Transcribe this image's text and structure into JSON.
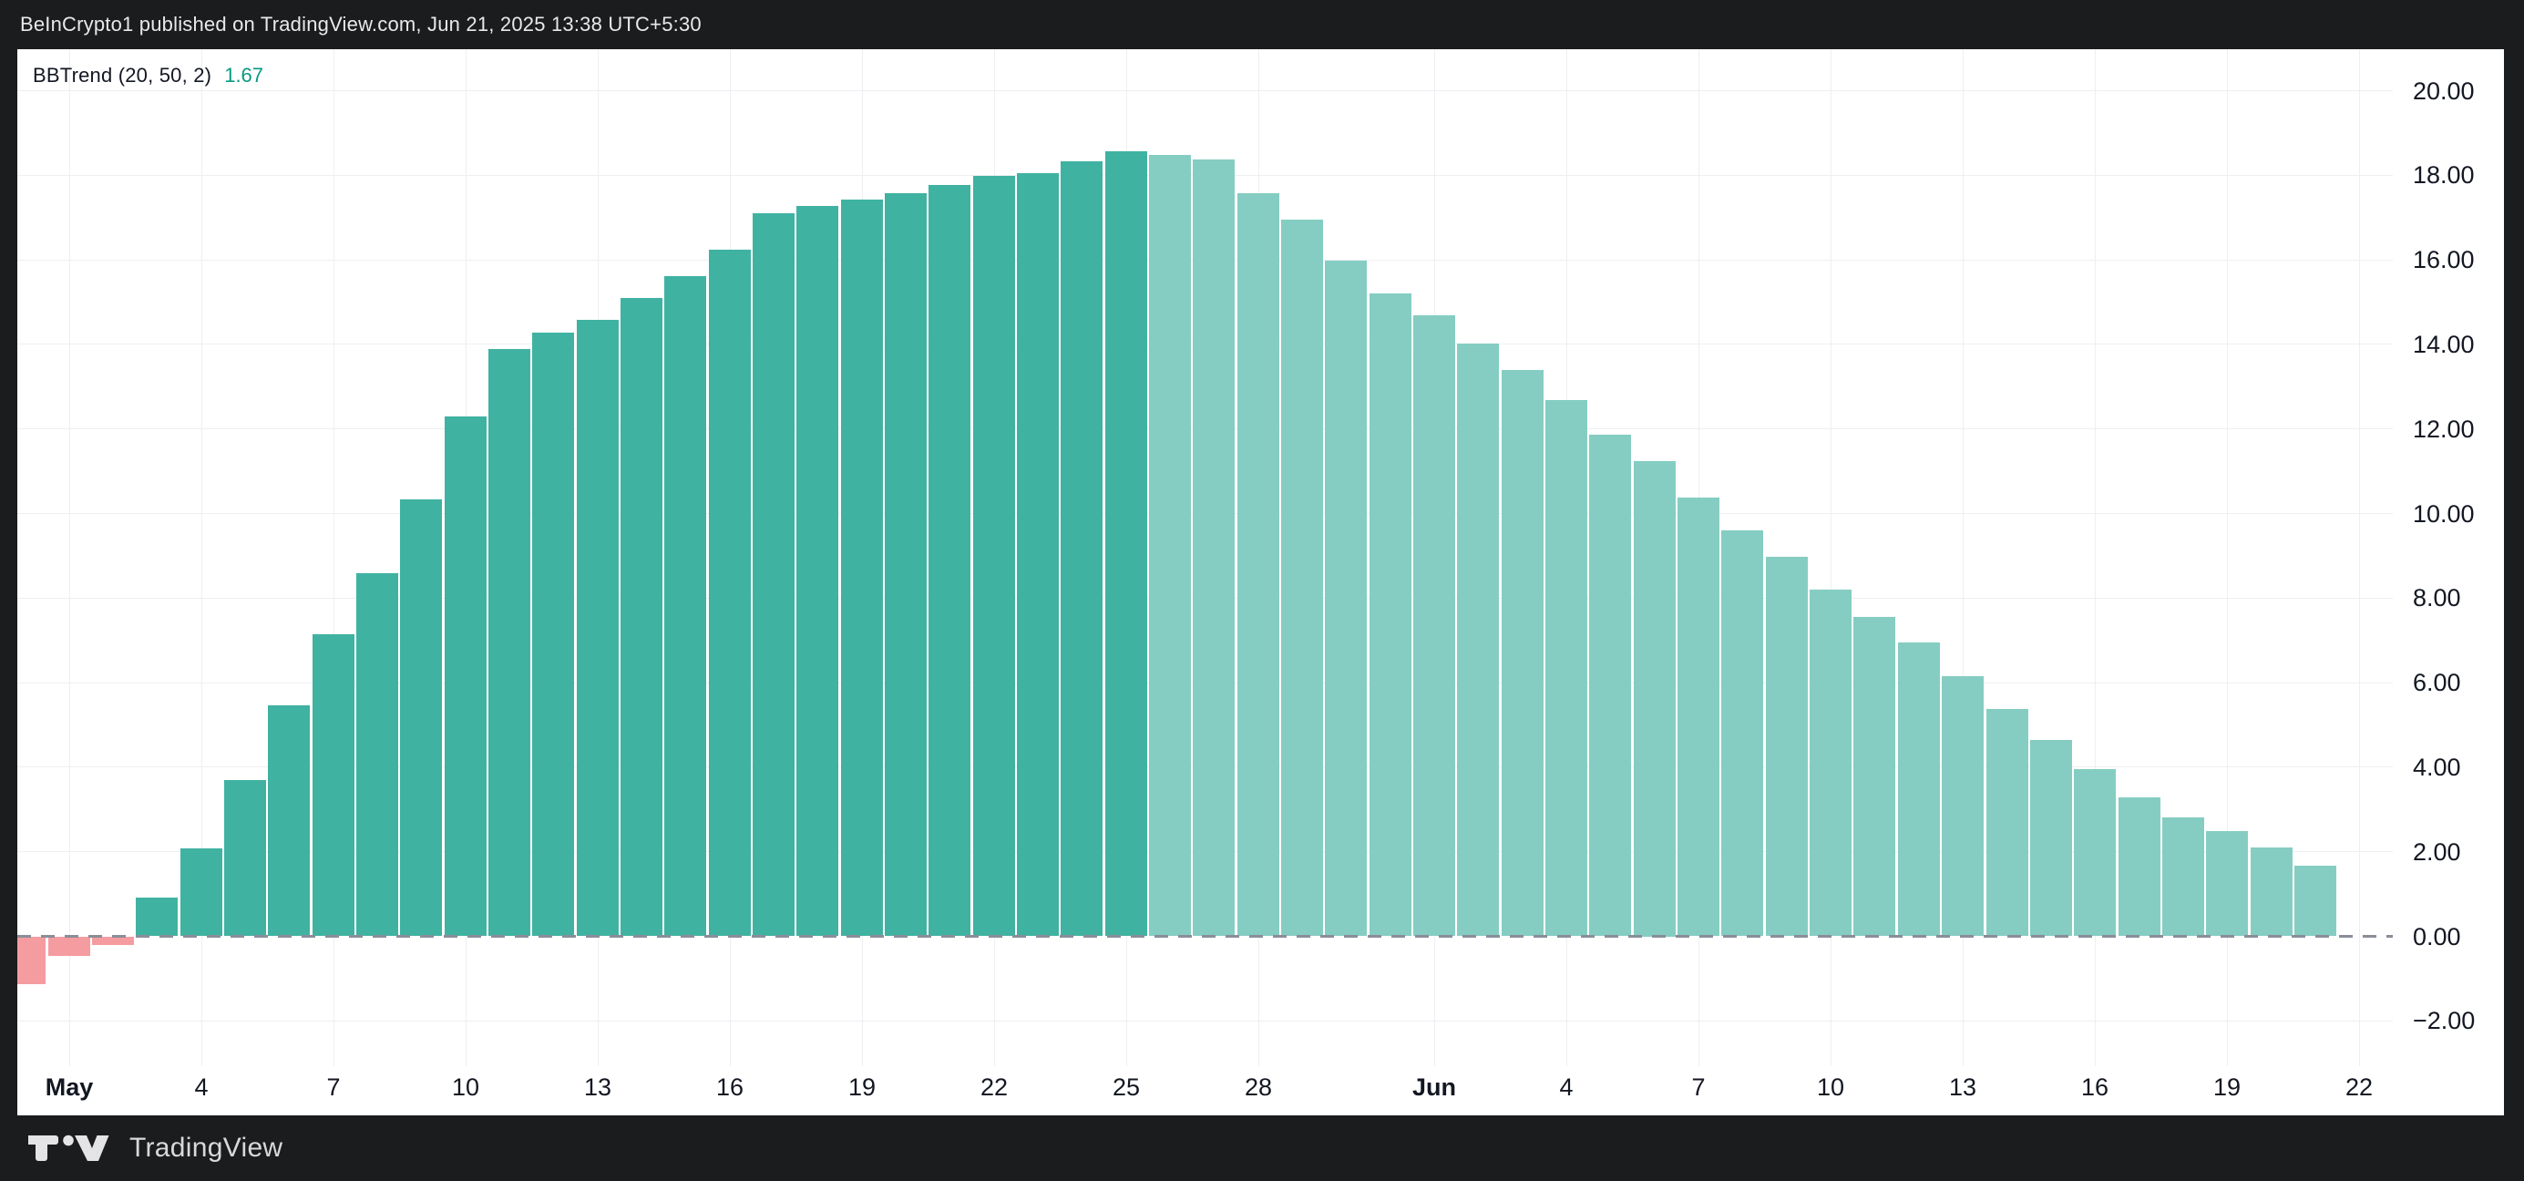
{
  "header": {
    "title": "BeInCrypto1 published on TradingView.com, Jun 21, 2025 13:38 UTC+5:30"
  },
  "indicator": {
    "name": "BBTrend (20, 50, 2)",
    "value": "1.67"
  },
  "footer": {
    "brand": "TradingView"
  },
  "colors": {
    "frame": "#1B1C1E",
    "plot_bg": "#FFFFFF",
    "header_text": "#E8E9EB",
    "footer_text": "#D8D9DB",
    "axis_text": "#131722",
    "value_text": "#089981",
    "grid": "#EDEFF2",
    "zero_line": "#8A8E98",
    "up_strong": "#40B2A2",
    "up_weak": "#85CDC2",
    "down": "#F59CA1",
    "logo": "#E4E4E6"
  },
  "chart_data": {
    "type": "bar",
    "title": "BBTrend (20, 50, 2)",
    "ylabel": "",
    "xlabel": "",
    "ylim": [
      -3.1,
      21.0
    ],
    "grid": true,
    "zero_line": "dashed",
    "legend_position": "top-left",
    "categories": [
      "Apr 30",
      "May 1",
      "May 2",
      "May 3",
      "May 4",
      "May 5",
      "May 6",
      "May 7",
      "May 8",
      "May 9",
      "May 10",
      "May 11",
      "May 12",
      "May 13",
      "May 14",
      "May 15",
      "May 16",
      "May 17",
      "May 18",
      "May 19",
      "May 20",
      "May 21",
      "May 22",
      "May 23",
      "May 24",
      "May 25",
      "May 26",
      "May 27",
      "May 28",
      "May 29",
      "May 30",
      "May 31",
      "Jun 1",
      "Jun 2",
      "Jun 3",
      "Jun 4",
      "Jun 5",
      "Jun 6",
      "Jun 7",
      "Jun 8",
      "Jun 9",
      "Jun 10",
      "Jun 11",
      "Jun 12",
      "Jun 13",
      "Jun 14",
      "Jun 15",
      "Jun 16",
      "Jun 17",
      "Jun 18",
      "Jun 19",
      "Jun 20",
      "Jun 21"
    ],
    "values": [
      -1.13,
      -0.46,
      -0.21,
      0.92,
      2.08,
      3.7,
      5.46,
      7.15,
      8.59,
      10.33,
      12.3,
      13.9,
      14.27,
      14.58,
      15.09,
      15.61,
      16.24,
      17.1,
      17.27,
      17.42,
      17.58,
      17.78,
      17.99,
      18.06,
      18.32,
      18.57,
      18.48,
      18.37,
      17.57,
      16.95,
      15.97,
      15.21,
      14.69,
      14.01,
      13.4,
      12.68,
      11.86,
      11.25,
      10.38,
      9.61,
      8.98,
      8.19,
      7.55,
      6.95,
      6.15,
      5.38,
      4.65,
      3.95,
      3.29,
      2.82,
      2.49,
      2.1,
      1.67
    ],
    "bar_style_rule": {
      "negative": "down",
      "last_strong_index": 25,
      "after": "up_weak"
    },
    "y_ticks": {
      "values": [
        20,
        18,
        16,
        14,
        12,
        10,
        8,
        6,
        4,
        2,
        0,
        -2
      ],
      "labels": [
        "20.00",
        "18.00",
        "16.00",
        "14.00",
        "12.00",
        "10.00",
        "8.00",
        "6.00",
        "4.00",
        "2.00",
        "0.00",
        "−2.00"
      ]
    },
    "x_ticks": [
      {
        "label": "May",
        "day": 1,
        "bold": true
      },
      {
        "label": "4",
        "day": 4,
        "bold": false
      },
      {
        "label": "7",
        "day": 7,
        "bold": false
      },
      {
        "label": "10",
        "day": 10,
        "bold": false
      },
      {
        "label": "13",
        "day": 13,
        "bold": false
      },
      {
        "label": "16",
        "day": 16,
        "bold": false
      },
      {
        "label": "19",
        "day": 19,
        "bold": false
      },
      {
        "label": "22",
        "day": 22,
        "bold": false
      },
      {
        "label": "25",
        "day": 25,
        "bold": false
      },
      {
        "label": "28",
        "day": 28,
        "bold": false
      },
      {
        "label": "Jun",
        "day": 32,
        "bold": true
      },
      {
        "label": "4",
        "day": 35,
        "bold": false
      },
      {
        "label": "7",
        "day": 38,
        "bold": false
      },
      {
        "label": "10",
        "day": 41,
        "bold": false
      },
      {
        "label": "13",
        "day": 44,
        "bold": false
      },
      {
        "label": "16",
        "day": 47,
        "bold": false
      },
      {
        "label": "19",
        "day": 50,
        "bold": false
      },
      {
        "label": "22",
        "day": 53,
        "bold": false
      }
    ]
  }
}
